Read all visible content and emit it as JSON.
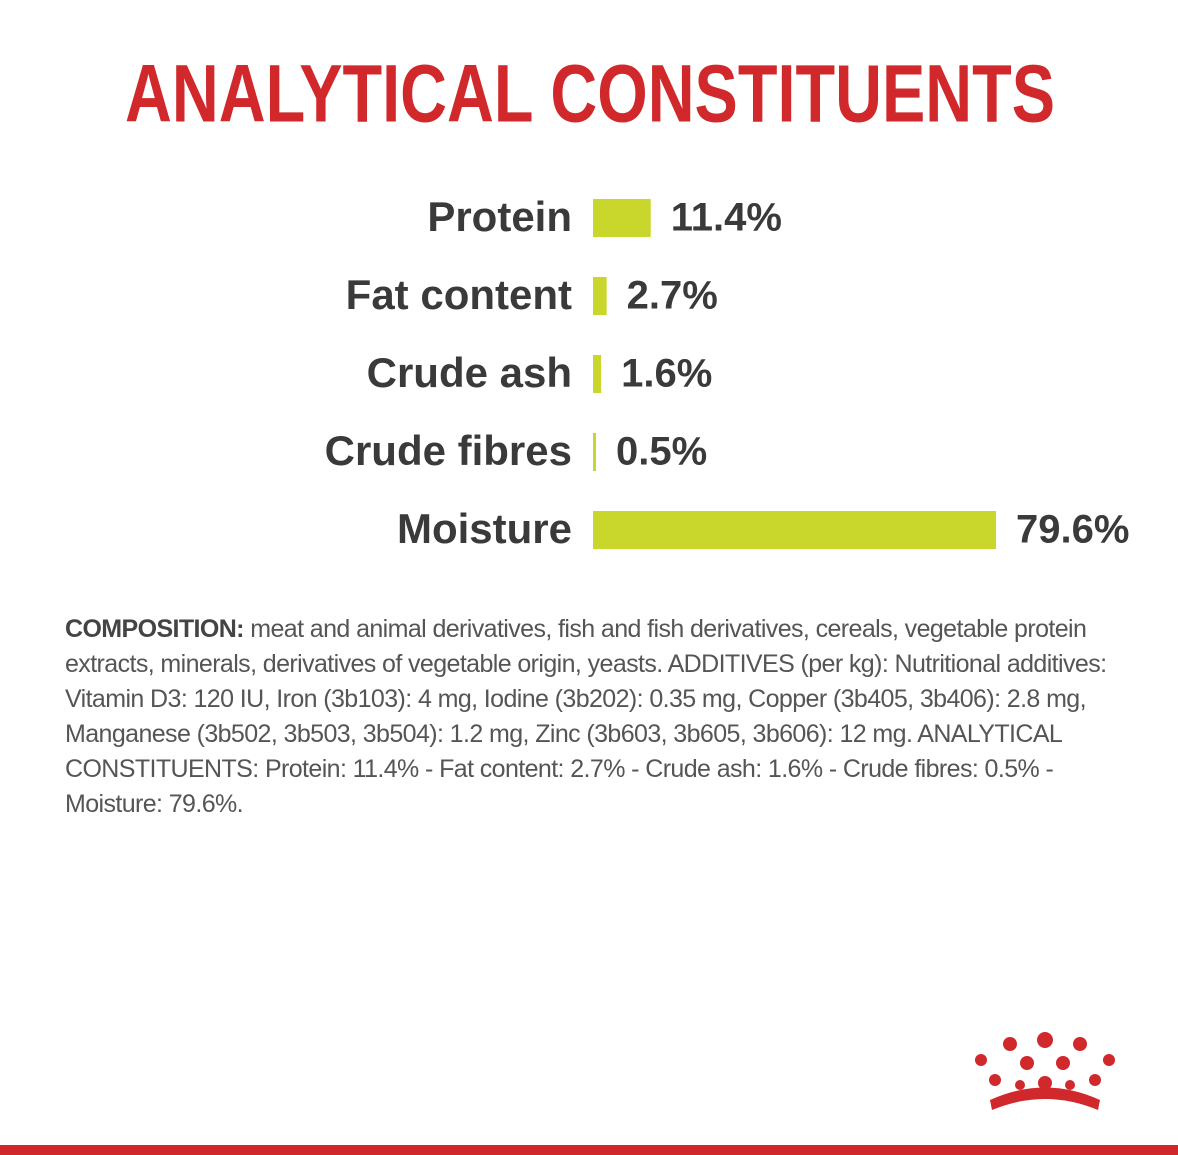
{
  "chart_data": {
    "type": "bar",
    "orientation": "horizontal",
    "title": "ANALYTICAL CONSTITUENTS",
    "categories": [
      "Protein",
      "Fat content",
      "Crude ash",
      "Crude fibres",
      "Moisture"
    ],
    "values": [
      11.4,
      2.7,
      1.6,
      0.5,
      79.6
    ],
    "value_labels": [
      "11.4%",
      "2.7%",
      "1.6%",
      "0.5%",
      "79.6%"
    ],
    "color": "#c9d62b"
  },
  "composition": {
    "label": "COMPOSITION:",
    "text": "meat and animal derivatives, fish and fish derivatives, cereals, vegetable protein extracts, minerals, derivatives of vegetable origin, yeasts. ADDITIVES (per kg): Nutritional additives: Vitamin D3: 120 IU, Iron (3b103): 4 mg, Iodine (3b202): 0.35 mg, Copper (3b405, 3b406): 2.8 mg, Manganese (3b502, 3b503, 3b504): 1.2 mg, Zinc (3b603, 3b605, 3b606): 12 mg. ANALYTICAL CONSTITUENTS: Protein: 11.4% - Fat content: 2.7% - Crude ash: 1.6% - Crude fibres: 0.5% - Moisture: 79.6%."
  }
}
